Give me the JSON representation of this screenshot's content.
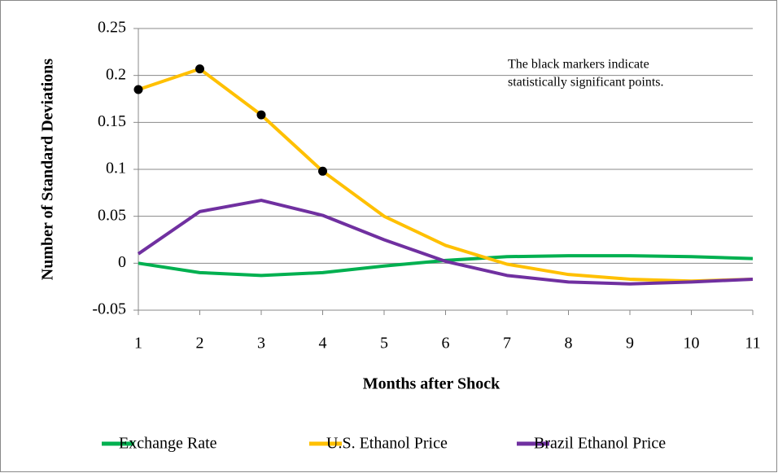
{
  "chart_data": {
    "type": "line",
    "x_label": "Months after Shock",
    "y_label": "Number of Standard Deviations",
    "annotation": [
      "The black markers indicate",
      "statistically significant points."
    ],
    "x": [
      1,
      2,
      3,
      4,
      5,
      6,
      7,
      8,
      9,
      10,
      11
    ],
    "xlim": [
      1,
      11
    ],
    "xticks": [
      1,
      2,
      3,
      4,
      5,
      6,
      7,
      8,
      9,
      10,
      11
    ],
    "ylim": [
      -0.05,
      0.25
    ],
    "yticks": [
      -0.05,
      0,
      0.05,
      0.1,
      0.15,
      0.2,
      0.25
    ],
    "grid": true,
    "legend": "bottom",
    "series": [
      {
        "name": "Exchange Rate",
        "color": "#00b050",
        "values": [
          0,
          -0.01,
          -0.013,
          -0.01,
          -0.003,
          0.003,
          0.007,
          0.008,
          0.008,
          0.007,
          0.005
        ]
      },
      {
        "name": "U.S. Ethanol Price",
        "color": "#ffc000",
        "values": [
          0.185,
          0.207,
          0.158,
          0.098,
          0.05,
          0.019,
          -0.001,
          -0.012,
          -0.017,
          -0.019,
          -0.017
        ]
      },
      {
        "name": "Brazil Ethanol Price",
        "color": "#7030a0",
        "values": [
          0.01,
          0.055,
          0.067,
          0.051,
          0.025,
          0.002,
          -0.013,
          -0.02,
          -0.022,
          -0.02,
          -0.017
        ]
      }
    ],
    "markers": {
      "color": "#000000",
      "x": [
        1,
        2,
        3,
        4
      ],
      "values": [
        0.185,
        0.207,
        0.158,
        0.098
      ]
    }
  }
}
